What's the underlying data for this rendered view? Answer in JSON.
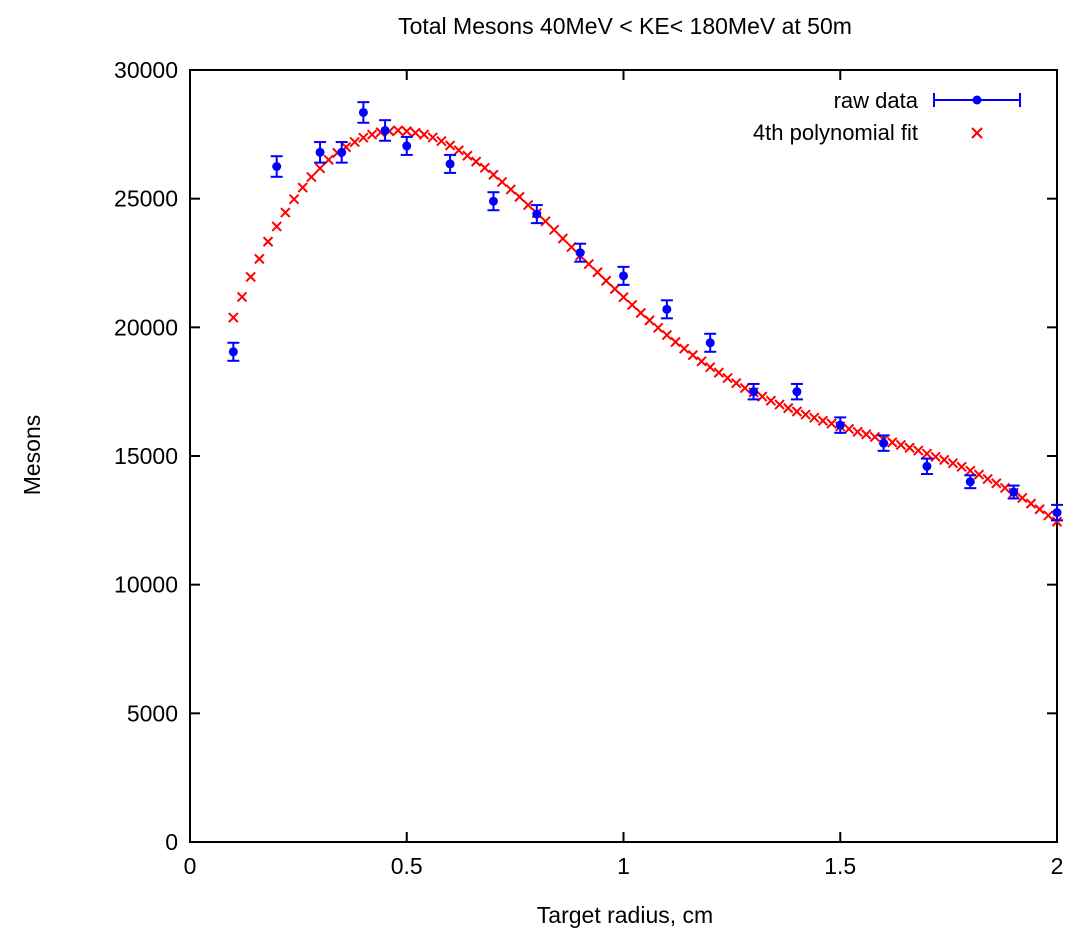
{
  "chart_data": {
    "type": "scatter",
    "title": "Total Mesons 40MeV < KE< 180MeV at 50m",
    "xlabel": "Target radius, cm",
    "ylabel": "Mesons",
    "xlim": [
      0,
      2
    ],
    "ylim": [
      0,
      30000
    ],
    "xticks": [
      "0",
      "0.5",
      "1",
      "1.5",
      "2"
    ],
    "yticks": [
      "0",
      "5000",
      "10000",
      "15000",
      "20000",
      "25000",
      "30000"
    ],
    "xtick_values": [
      0,
      0.5,
      1,
      1.5,
      2
    ],
    "ytick_values": [
      0,
      5000,
      10000,
      15000,
      20000,
      25000,
      30000
    ],
    "grid": false,
    "legend_position": "top-right",
    "series": [
      {
        "name": "raw data",
        "style": "points-with-errorbars",
        "color": "#0000ff",
        "x": [
          0.1,
          0.2,
          0.3,
          0.35,
          0.4,
          0.45,
          0.5,
          0.6,
          0.7,
          0.8,
          0.9,
          1.0,
          1.1,
          1.2,
          1.3,
          1.4,
          1.5,
          1.6,
          1.7,
          1.8,
          1.9,
          2.0
        ],
        "y": [
          19050,
          26250,
          26800,
          26800,
          28350,
          27650,
          27050,
          26350,
          24900,
          24400,
          22900,
          22000,
          20700,
          19400,
          17500,
          17500,
          16200,
          15500,
          14600,
          14000,
          13600,
          12800
        ],
        "err": [
          350,
          400,
          400,
          400,
          400,
          400,
          350,
          350,
          350,
          350,
          350,
          350,
          350,
          350,
          300,
          300,
          300,
          300,
          300,
          250,
          250,
          300
        ]
      },
      {
        "name": "4th polynomial fit",
        "style": "cross-markers",
        "color": "#ff0000",
        "x": [
          0.1,
          0.12,
          0.14,
          0.16,
          0.18,
          0.2,
          0.22,
          0.24,
          0.26,
          0.28,
          0.3,
          0.32,
          0.34,
          0.36,
          0.38,
          0.4,
          0.42,
          0.44,
          0.46,
          0.48,
          0.5,
          0.52,
          0.54,
          0.56,
          0.58,
          0.6,
          0.62,
          0.64,
          0.66,
          0.68,
          0.7,
          0.72,
          0.74,
          0.76,
          0.78,
          0.8,
          0.82,
          0.84,
          0.86,
          0.88,
          0.9,
          0.92,
          0.94,
          0.96,
          0.98,
          1.0,
          1.02,
          1.04,
          1.06,
          1.08,
          1.1,
          1.12,
          1.14,
          1.16,
          1.18,
          1.2,
          1.22,
          1.24,
          1.26,
          1.28,
          1.3,
          1.32,
          1.34,
          1.36,
          1.38,
          1.4,
          1.42,
          1.44,
          1.46,
          1.48,
          1.5,
          1.52,
          1.54,
          1.56,
          1.58,
          1.6,
          1.62,
          1.64,
          1.66,
          1.68,
          1.7,
          1.72,
          1.74,
          1.76,
          1.78,
          1.8,
          1.82,
          1.84,
          1.86,
          1.88,
          1.9,
          1.92,
          1.94,
          1.96,
          1.98,
          2.0
        ],
        "y": [
          20380,
          21180,
          21960,
          22660,
          23330,
          23920,
          24460,
          24980,
          25430,
          25840,
          26180,
          26510,
          26780,
          27000,
          27200,
          27370,
          27490,
          27580,
          27620,
          27650,
          27620,
          27560,
          27490,
          27380,
          27240,
          27070,
          26880,
          26670,
          26440,
          26200,
          25930,
          25650,
          25360,
          25070,
          24750,
          24440,
          24120,
          23790,
          23450,
          23120,
          22790,
          22460,
          22140,
          21810,
          21490,
          21170,
          20870,
          20560,
          20270,
          19980,
          19700,
          19430,
          19170,
          18920,
          18680,
          18450,
          18240,
          18030,
          17830,
          17640,
          17470,
          17310,
          17150,
          17000,
          16860,
          16730,
          16610,
          16490,
          16370,
          16260,
          16150,
          16050,
          15940,
          15840,
          15740,
          15630,
          15530,
          15430,
          15320,
          15210,
          15090,
          14970,
          14850,
          14720,
          14580,
          14430,
          14280,
          14110,
          13940,
          13760,
          13570,
          13370,
          13150,
          12930,
          12690,
          12450
        ]
      }
    ]
  }
}
